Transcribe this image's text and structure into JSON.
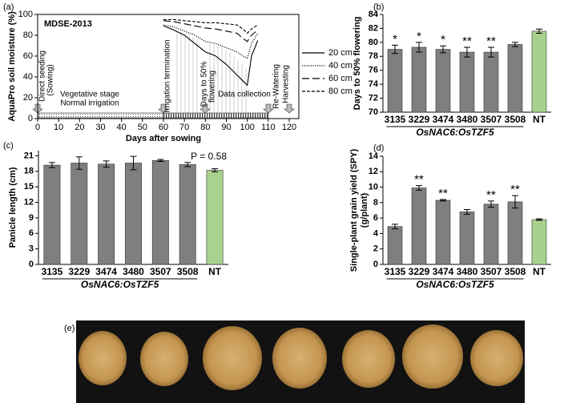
{
  "chart_data": [
    {
      "type": "line",
      "panel_label": "(a)",
      "title": "MDSE-2013",
      "xlabel": "Days after sowing",
      "ylabel": "AquaPro soil moisture (%)",
      "x": [
        60,
        65,
        70,
        75,
        80,
        85,
        90,
        95,
        98,
        100,
        102,
        105
      ],
      "series": [
        {
          "name": "20 cm",
          "dash": "solid",
          "color": "#000000",
          "values": [
            89,
            85,
            80,
            72,
            64,
            60,
            52,
            42,
            36,
            32,
            60,
            75
          ]
        },
        {
          "name": "40 cm",
          "dash": "dotted",
          "color": "#000000",
          "values": [
            90,
            88,
            84,
            80,
            74,
            72,
            68,
            64,
            60,
            58,
            72,
            82
          ]
        },
        {
          "name": "60 cm",
          "dash": "long-dash",
          "color": "#000000",
          "values": [
            94,
            93,
            91,
            89,
            87,
            86,
            84,
            82,
            77,
            74,
            80,
            85
          ]
        },
        {
          "name": "80 cm",
          "dash": "short-dash",
          "color": "#000000",
          "values": [
            95,
            95,
            94,
            93,
            92,
            92,
            91,
            90,
            86,
            82,
            86,
            90
          ]
        }
      ],
      "xlim": [
        0,
        120
      ],
      "xticks": [
        0,
        10,
        20,
        30,
        40,
        50,
        60,
        70,
        80,
        90,
        100,
        110,
        120
      ],
      "ylim": [
        0,
        100
      ],
      "yticks": [
        0,
        20,
        40,
        60,
        80,
        100
      ],
      "annotations": [
        "Direct seeding",
        "(Sowing)",
        "Vegetative stage",
        "Normal irrigation",
        "Irrigation termination",
        "Days to 50%",
        "flowering",
        "Data collection",
        "Re-Watering",
        "Harvesting"
      ]
    },
    {
      "type": "bar",
      "panel_label": "(b)",
      "ylabel": "Days to 50% flowering",
      "group_label": "OsNAC6:OsTZF5",
      "categories": [
        "3135",
        "3229",
        "3474",
        "3480",
        "3507",
        "3508",
        "NT"
      ],
      "values": [
        79.0,
        79.3,
        79.0,
        78.6,
        78.6,
        79.7,
        81.6
      ],
      "errors": [
        0.6,
        0.7,
        0.5,
        0.7,
        0.7,
        0.3,
        0.3
      ],
      "significance": [
        "*",
        "*",
        "*",
        "**",
        "**",
        null,
        null
      ],
      "colors": [
        "#7f7f7f",
        "#7f7f7f",
        "#7f7f7f",
        "#7f7f7f",
        "#7f7f7f",
        "#7f7f7f",
        "#a9d18e"
      ],
      "ylim": [
        70,
        84
      ],
      "yticks": [
        70,
        72,
        74,
        76,
        78,
        80,
        82,
        84
      ]
    },
    {
      "type": "bar",
      "panel_label": "(c)",
      "ylabel": "Panicle  length (cm)",
      "group_label": "OsNAC6:OsTZF5",
      "note": "P = 0.58",
      "categories": [
        "3135",
        "3229",
        "3474",
        "3480",
        "3507",
        "3508",
        "NT"
      ],
      "values": [
        19.2,
        19.6,
        19.4,
        19.6,
        20.1,
        19.3,
        18.2
      ],
      "errors": [
        0.5,
        1.2,
        0.6,
        1.3,
        0.2,
        0.4,
        0.3
      ],
      "significance": [
        null,
        null,
        null,
        null,
        null,
        null,
        null
      ],
      "colors": [
        "#7f7f7f",
        "#7f7f7f",
        "#7f7f7f",
        "#7f7f7f",
        "#7f7f7f",
        "#7f7f7f",
        "#a9d18e"
      ],
      "ylim": [
        0,
        22
      ],
      "yticks": [
        0,
        3,
        6,
        9,
        12,
        15,
        18,
        21
      ]
    },
    {
      "type": "bar",
      "panel_label": "(d)",
      "ylabel": [
        "Single-plant grain yield (SPY)",
        "(g/plant)"
      ],
      "group_label": "OsNAC6:OsTZF5",
      "categories": [
        "3135",
        "3229",
        "3474",
        "3480",
        "3507",
        "3508",
        "NT"
      ],
      "values": [
        4.9,
        9.9,
        8.3,
        6.8,
        7.8,
        8.1,
        5.8
      ],
      "errors": [
        0.3,
        0.3,
        0.1,
        0.3,
        0.4,
        0.8,
        0.1
      ],
      "significance": [
        null,
        "**",
        "**",
        null,
        "**",
        "**",
        null
      ],
      "colors": [
        "#7f7f7f",
        "#7f7f7f",
        "#7f7f7f",
        "#7f7f7f",
        "#7f7f7f",
        "#7f7f7f",
        "#a9d18e"
      ],
      "ylim": [
        0,
        14
      ],
      "yticks": [
        0,
        2,
        4,
        6,
        8,
        10,
        12,
        14
      ]
    }
  ],
  "photo": {
    "panel_label": "(e)"
  }
}
